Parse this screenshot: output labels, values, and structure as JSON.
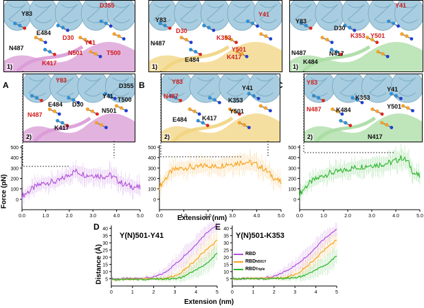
{
  "panels": {
    "A": {
      "letter": "A",
      "top_index": "1)",
      "bottom_index": "2)",
      "top_labels": [
        {
          "text": "Y83",
          "color": "black"
        },
        {
          "text": "D355",
          "color": "red"
        },
        {
          "text": "E484",
          "color": "black"
        },
        {
          "text": "D30",
          "color": "red"
        },
        {
          "text": "Y41",
          "color": "red"
        },
        {
          "text": "N501",
          "color": "red"
        },
        {
          "text": "T500",
          "color": "red"
        },
        {
          "text": "N487",
          "color": "black"
        },
        {
          "text": "K417",
          "color": "red"
        }
      ],
      "bottom_labels": [
        {
          "text": "Y83",
          "color": "red"
        },
        {
          "text": "D355",
          "color": "black"
        },
        {
          "text": "E484",
          "color": "black"
        },
        {
          "text": "Y41",
          "color": "black"
        },
        {
          "text": "N487",
          "color": "red"
        },
        {
          "text": "D30",
          "color": "black"
        },
        {
          "text": "T500",
          "color": "black"
        },
        {
          "text": "N501",
          "color": "black"
        },
        {
          "text": "K417",
          "color": "black"
        }
      ],
      "ribbon_color": "#d99ad6"
    },
    "B": {
      "letter": "B",
      "top_index": "1)",
      "bottom_index": "2)",
      "top_labels": [
        {
          "text": "Y83",
          "color": "black"
        },
        {
          "text": "Y41",
          "color": "red"
        },
        {
          "text": "D30",
          "color": "red"
        },
        {
          "text": "N487",
          "color": "black"
        },
        {
          "text": "K353",
          "color": "red"
        },
        {
          "text": "Y501",
          "color": "red"
        },
        {
          "text": "K417",
          "color": "red"
        },
        {
          "text": "E484",
          "color": "black"
        }
      ],
      "bottom_labels": [
        {
          "text": "Y83",
          "color": "red"
        },
        {
          "text": "Y41",
          "color": "black"
        },
        {
          "text": "N487",
          "color": "red"
        },
        {
          "text": "K353",
          "color": "black"
        },
        {
          "text": "E484",
          "color": "black"
        },
        {
          "text": "K417",
          "color": "black"
        },
        {
          "text": "Y501",
          "color": "black"
        }
      ],
      "ribbon_color": "#f1d480"
    },
    "C": {
      "letter": "C",
      "top_index": "1)",
      "bottom_index": "2)",
      "top_labels": [
        {
          "text": "Y41",
          "color": "red"
        },
        {
          "text": "Y83",
          "color": "black"
        },
        {
          "text": "D30",
          "color": "black"
        },
        {
          "text": "K353",
          "color": "red"
        },
        {
          "text": "Y501",
          "color": "red"
        },
        {
          "text": "N487",
          "color": "black"
        },
        {
          "text": "N417",
          "color": "black"
        },
        {
          "text": "K484",
          "color": "black"
        }
      ],
      "bottom_labels": [
        {
          "text": "Y83",
          "color": "red"
        },
        {
          "text": "Y41",
          "color": "black"
        },
        {
          "text": "K353",
          "color": "black"
        },
        {
          "text": "N487",
          "color": "red"
        },
        {
          "text": "K484",
          "color": "black"
        },
        {
          "text": "Y501",
          "color": "black"
        },
        {
          "text": "N417",
          "color": "black"
        }
      ],
      "ribbon_color": "#a9dca3"
    },
    "D": {
      "letter": "D",
      "title": "Y(N)501-Y41"
    },
    "E": {
      "letter": "E",
      "title": "Y(N)501-K353"
    }
  },
  "force_axis": {
    "ylabel": "Force (pN)",
    "xlabel": "Extension (nm)"
  },
  "distance_axis": {
    "ylabel": "Distance (Å)",
    "xlabel": "Extension (nm)"
  },
  "legend": [
    {
      "base": "RBD",
      "sup": "",
      "color": "#b04fd6"
    },
    {
      "base": "RBD",
      "sup": "N501Y",
      "color": "#f5a21a"
    },
    {
      "base": "RBD",
      "sup": "Triple",
      "color": "#2bb52b"
    }
  ],
  "colors": {
    "protein_helix": "#a8cde0",
    "ace2_atoms": "#2f8fd6",
    "rbd_atoms": "#f2a12e",
    "oxygen": "#e0241c",
    "nitrogen": "#1f3fd0",
    "purple": "#b04fd6",
    "orange": "#f5a21a",
    "green": "#2bb52b"
  },
  "chart_data": [
    {
      "type": "line",
      "id": "force-A",
      "xlabel": "Extension (nm)",
      "ylabel": "Force (pN)",
      "xlim": [
        0,
        5
      ],
      "ylim": [
        -100,
        520
      ],
      "xticks": [
        "0.0",
        "1.0",
        "2.0",
        "3.0",
        "4.0",
        "5.0"
      ],
      "yticks": [
        "0",
        "100",
        "200",
        "300",
        "400",
        "500"
      ],
      "series": [
        {
          "color": "#b04fd6",
          "x": [
            0,
            0.25,
            0.5,
            0.75,
            1,
            1.25,
            1.5,
            1.75,
            2,
            2.25,
            2.5,
            2.75,
            3,
            3.25,
            3.5,
            3.75,
            4,
            4.25,
            4.5,
            4.75,
            5
          ],
          "y": [
            30,
            70,
            110,
            140,
            160,
            165,
            170,
            200,
            240,
            270,
            250,
            230,
            235,
            225,
            220,
            230,
            190,
            150,
            130,
            120,
            110
          ],
          "err": [
            60,
            70,
            80,
            80,
            80,
            80,
            80,
            80,
            90,
            90,
            90,
            90,
            90,
            90,
            90,
            110,
            90,
            90,
            90,
            90,
            90
          ]
        }
      ]
    },
    {
      "type": "line",
      "id": "force-B",
      "xlabel": "Extension (nm)",
      "ylabel": "",
      "xlim": [
        0,
        5
      ],
      "ylim": [
        -100,
        520
      ],
      "xticks": [
        "0.0",
        "1.0",
        "2.0",
        "3.0",
        "4.0",
        "5.0"
      ],
      "yticks": [
        "0",
        "100",
        "200",
        "300",
        "400",
        "500"
      ],
      "series": [
        {
          "color": "#f5a21a",
          "x": [
            0,
            0.25,
            0.5,
            0.75,
            1,
            1.25,
            1.5,
            1.75,
            2,
            2.25,
            2.5,
            2.75,
            3,
            3.25,
            3.5,
            3.75,
            4,
            4.25,
            4.5,
            4.75,
            5
          ],
          "y": [
            120,
            200,
            270,
            290,
            300,
            310,
            300,
            320,
            330,
            310,
            320,
            340,
            340,
            350,
            360,
            350,
            330,
            300,
            250,
            200,
            160
          ],
          "err": [
            70,
            80,
            90,
            90,
            90,
            90,
            90,
            90,
            90,
            90,
            90,
            90,
            100,
            100,
            110,
            100,
            100,
            100,
            90,
            90,
            80
          ]
        }
      ]
    },
    {
      "type": "line",
      "id": "force-C",
      "xlabel": "Extension (nm)",
      "ylabel": "",
      "xlim": [
        0,
        5
      ],
      "ylim": [
        -100,
        520
      ],
      "xticks": [
        "0.0",
        "1.0",
        "2.0",
        "3.0",
        "4.0",
        "5.0"
      ],
      "yticks": [
        "0",
        "100",
        "200",
        "300",
        "400",
        "500"
      ],
      "series": [
        {
          "color": "#2bb52b",
          "x": [
            0,
            0.25,
            0.5,
            0.75,
            1,
            1.25,
            1.5,
            1.75,
            2,
            2.25,
            2.5,
            2.75,
            3,
            3.25,
            3.5,
            3.75,
            4,
            4.25,
            4.5,
            4.75,
            5
          ],
          "y": [
            50,
            120,
            170,
            200,
            230,
            250,
            260,
            270,
            290,
            300,
            310,
            320,
            330,
            330,
            340,
            350,
            370,
            400,
            360,
            250,
            220
          ],
          "err": [
            60,
            70,
            80,
            80,
            80,
            90,
            90,
            90,
            90,
            90,
            90,
            90,
            100,
            100,
            100,
            100,
            110,
            110,
            110,
            90,
            80
          ]
        }
      ]
    },
    {
      "type": "line",
      "id": "distance-D",
      "title": "Y(N)501-Y41",
      "xlabel": "Extension (nm)",
      "ylabel": "Distance (Å)",
      "xlim": [
        0,
        5
      ],
      "ylim": [
        0,
        42
      ],
      "xticks": [
        "0",
        "1",
        "2",
        "3",
        "4",
        "5"
      ],
      "yticks": [
        "5",
        "10",
        "15",
        "20",
        "25",
        "30",
        "35",
        "40"
      ],
      "series": [
        {
          "name": "RBD",
          "color": "#b04fd6",
          "x": [
            0,
            0.5,
            1,
            1.5,
            2,
            2.25,
            2.5,
            2.75,
            3,
            3.25,
            3.5,
            3.75,
            4,
            4.25,
            4.5,
            4.75,
            5
          ],
          "y": [
            5,
            5,
            5.2,
            5.5,
            6,
            7.5,
            9,
            12,
            15,
            18,
            22,
            25,
            29,
            33,
            37,
            40,
            42
          ],
          "err": [
            1,
            1,
            1,
            1.5,
            2,
            3,
            4,
            5,
            6,
            6,
            7,
            7,
            7,
            7,
            6,
            6,
            5
          ]
        },
        {
          "name": "RBD N501Y",
          "color": "#f5a21a",
          "x": [
            0,
            0.5,
            1,
            1.5,
            2,
            2.5,
            3,
            3.25,
            3.5,
            3.75,
            4,
            4.25,
            4.5,
            4.75,
            5
          ],
          "y": [
            4.5,
            4.5,
            4.6,
            4.8,
            5,
            5.5,
            7,
            9,
            12,
            15,
            18,
            22,
            25,
            28,
            32
          ],
          "err": [
            1,
            1,
            1,
            1,
            1,
            2,
            3,
            4,
            5,
            6,
            7,
            7,
            7,
            7,
            6
          ]
        },
        {
          "name": "RBD Triple",
          "color": "#2bb52b",
          "x": [
            0,
            0.5,
            1,
            1.5,
            2,
            2.5,
            3,
            3.25,
            3.5,
            3.75,
            4,
            4.25,
            4.5,
            4.75,
            5
          ],
          "y": [
            4.5,
            4.5,
            4.5,
            4.6,
            4.8,
            5,
            5.2,
            5.8,
            7,
            9,
            11,
            13,
            16,
            19,
            23
          ],
          "err": [
            1,
            1,
            1,
            1,
            1,
            1.5,
            2,
            3,
            4,
            5,
            6,
            7,
            7,
            7,
            7
          ]
        }
      ]
    },
    {
      "type": "line",
      "id": "distance-E",
      "title": "Y(N)501-K353",
      "xlabel": "Extension (nm)",
      "ylabel": "",
      "xlim": [
        0,
        5
      ],
      "ylim": [
        0,
        42
      ],
      "xticks": [
        "0",
        "1",
        "2",
        "3",
        "4",
        "5"
      ],
      "yticks": [
        "5",
        "10",
        "15",
        "20",
        "25",
        "30",
        "35",
        "40"
      ],
      "series": [
        {
          "name": "RBD",
          "color": "#b04fd6",
          "x": [
            0,
            0.5,
            1,
            1.5,
            2,
            2.25,
            2.5,
            2.75,
            3,
            3.25,
            3.5,
            3.75,
            4,
            4.25,
            4.5,
            4.75,
            5
          ],
          "y": [
            5,
            5,
            5.2,
            5.6,
            6.5,
            8,
            10,
            12,
            14,
            17,
            20,
            23,
            27,
            31,
            34,
            37,
            39
          ],
          "err": [
            1,
            1,
            1,
            1.5,
            2,
            3,
            4,
            5,
            5,
            6,
            6,
            7,
            7,
            6,
            6,
            5,
            5
          ]
        },
        {
          "name": "RBD N501Y",
          "color": "#f5a21a",
          "x": [
            0,
            0.5,
            1,
            1.5,
            2,
            2.5,
            3,
            3.25,
            3.5,
            3.75,
            4,
            4.25,
            4.5,
            4.75,
            5
          ],
          "y": [
            5,
            5,
            5,
            5.2,
            5.5,
            6,
            8,
            10,
            13,
            16,
            19,
            23,
            26,
            29,
            32
          ],
          "err": [
            1,
            1,
            1,
            1,
            1.5,
            2,
            3,
            4,
            5,
            6,
            6,
            6,
            6,
            6,
            5
          ]
        },
        {
          "name": "RBD Triple",
          "color": "#2bb52b",
          "x": [
            0,
            0.5,
            1,
            1.5,
            2,
            2.5,
            3,
            3.25,
            3.5,
            3.75,
            4,
            4.25,
            4.5,
            4.75,
            5
          ],
          "y": [
            5,
            5,
            5,
            5,
            5.2,
            5.4,
            5.8,
            6.5,
            7.5,
            9,
            11,
            13,
            15,
            18,
            21
          ],
          "err": [
            1,
            1,
            1,
            1,
            1,
            1.5,
            2,
            3,
            4,
            5,
            6,
            6,
            7,
            7,
            7
          ]
        }
      ]
    }
  ]
}
